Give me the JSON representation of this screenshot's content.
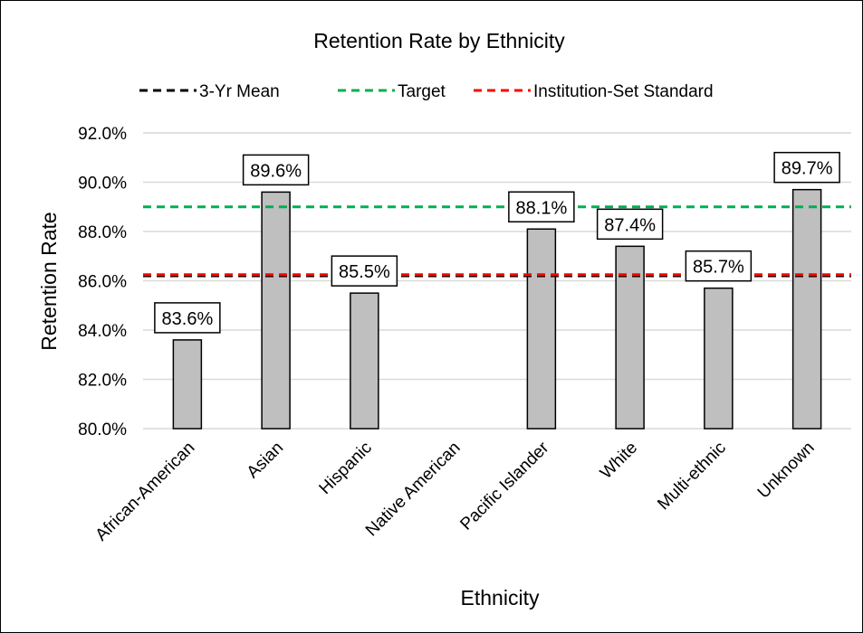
{
  "chart_data": {
    "type": "bar",
    "title": "Retention Rate by Ethnicity",
    "xlabel": "Ethnicity",
    "ylabel": "Retention Rate",
    "categories": [
      "African-American",
      "Asian",
      "Hispanic",
      "Native American",
      "Pacific Islander",
      "White",
      "Multi-ethnic",
      "Unknown"
    ],
    "values": [
      83.6,
      89.6,
      85.5,
      null,
      88.1,
      87.4,
      85.7,
      89.7
    ],
    "data_labels": [
      "83.6%",
      "89.6%",
      "85.5%",
      "",
      "88.1%",
      "87.4%",
      "85.7%",
      "89.7%"
    ],
    "ylim": [
      80,
      92
    ],
    "yticks": [
      80,
      82,
      84,
      86,
      88,
      90,
      92
    ],
    "ytick_labels": [
      "80.0%",
      "82.0%",
      "84.0%",
      "86.0%",
      "88.0%",
      "90.0%",
      "92.0%"
    ],
    "grid": true,
    "bar_color": "#bfbfbf",
    "reference_lines": [
      {
        "name": "3-Yr Mean",
        "value": 86.2,
        "color": "#000000",
        "style": "dashed"
      },
      {
        "name": "Target",
        "value": 89.0,
        "color": "#00b050",
        "style": "dashed"
      },
      {
        "name": "Institution-Set Standard",
        "value": 86.25,
        "color": "#ff0000",
        "style": "dashed"
      }
    ],
    "legend_position": "top"
  }
}
